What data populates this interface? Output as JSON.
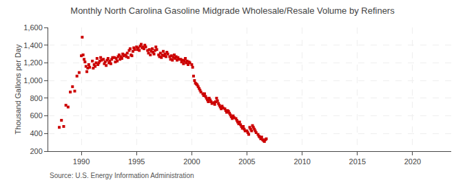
{
  "chart_data": {
    "type": "scatter",
    "title": "Monthly North Carolina Gasoline Midgrade Wholesale/Resale Volume by Refiners",
    "ylabel": "Thousand Gallons per Day",
    "annotations": [
      "Source: U.S. Energy Information Administration"
    ],
    "color": "#cc0000",
    "marker": "square",
    "grid": true,
    "xlim": [
      1987.0,
      2023.5
    ],
    "xticks": [
      1990,
      1995,
      2000,
      2005,
      2010,
      2015,
      2020
    ],
    "ylim": [
      200,
      1600
    ],
    "yticks": [
      200,
      400,
      600,
      800,
      {
        "value": 1000,
        "label": "1,000"
      },
      {
        "value": 1200,
        "label": "1,200"
      },
      {
        "value": 1400,
        "label": "1,400"
      },
      {
        "value": 1600,
        "label": "1,600"
      }
    ],
    "x": [
      1988.0,
      1988.2,
      1988.4,
      1988.6,
      1988.8,
      1989.0,
      1989.2,
      1989.4,
      1989.6,
      1989.8,
      1990.0,
      1990.08,
      1990.16,
      1990.25,
      1990.33,
      1990.42,
      1990.5,
      1990.58,
      1990.67,
      1990.75,
      1991.0,
      1991.08,
      1991.16,
      1991.25,
      1991.33,
      1991.42,
      1991.5,
      1991.58,
      1991.67,
      1991.75,
      1991.83,
      1992.0,
      1992.08,
      1992.16,
      1992.25,
      1992.33,
      1992.42,
      1992.5,
      1992.58,
      1992.67,
      1992.75,
      1992.83,
      1993.0,
      1993.08,
      1993.16,
      1993.25,
      1993.33,
      1993.42,
      1993.5,
      1993.58,
      1993.67,
      1993.75,
      1993.83,
      1994.0,
      1994.08,
      1994.16,
      1994.25,
      1994.33,
      1994.42,
      1994.5,
      1994.58,
      1994.67,
      1994.75,
      1994.83,
      1995.0,
      1995.08,
      1995.16,
      1995.25,
      1995.33,
      1995.42,
      1995.5,
      1995.58,
      1995.67,
      1995.75,
      1995.83,
      1996.0,
      1996.08,
      1996.16,
      1996.25,
      1996.33,
      1996.42,
      1996.5,
      1996.58,
      1996.67,
      1996.75,
      1996.83,
      1997.0,
      1997.08,
      1997.16,
      1997.25,
      1997.33,
      1997.42,
      1997.5,
      1997.58,
      1997.67,
      1997.75,
      1997.83,
      1998.0,
      1998.08,
      1998.16,
      1998.25,
      1998.33,
      1998.42,
      1998.5,
      1998.58,
      1998.67,
      1998.75,
      1998.83,
      1999.0,
      1999.08,
      1999.16,
      1999.25,
      1999.33,
      1999.42,
      1999.5,
      1999.58,
      1999.67,
      1999.75,
      1999.83,
      2000.0,
      2000.08,
      2000.16,
      2000.25,
      2000.33,
      2000.42,
      2000.5,
      2000.58,
      2000.67,
      2000.75,
      2000.83,
      2001.0,
      2001.08,
      2001.16,
      2001.25,
      2001.33,
      2001.42,
      2001.5,
      2001.58,
      2001.67,
      2001.75,
      2001.83,
      2002.0,
      2002.08,
      2002.16,
      2002.25,
      2002.33,
      2002.42,
      2002.5,
      2002.58,
      2002.67,
      2002.75,
      2002.83,
      2003.0,
      2003.08,
      2003.16,
      2003.25,
      2003.33,
      2003.42,
      2003.5,
      2003.58,
      2003.67,
      2003.75,
      2003.83,
      2004.0,
      2004.08,
      2004.16,
      2004.25,
      2004.33,
      2004.42,
      2004.5,
      2004.58,
      2004.67,
      2004.75,
      2004.83,
      2005.0,
      2005.08,
      2005.16,
      2005.25,
      2005.33,
      2005.42,
      2005.5,
      2005.58,
      2005.67,
      2005.75,
      2005.83,
      2006.0,
      2006.08,
      2006.16,
      2006.25,
      2006.33,
      2006.42,
      2006.5,
      2006.58,
      2006.67,
      2006.75
    ],
    "values": [
      470,
      550,
      480,
      720,
      700,
      870,
      930,
      880,
      1050,
      1090,
      1280,
      1490,
      1290,
      1240,
      1210,
      1160,
      1100,
      1140,
      1180,
      1150,
      1220,
      1140,
      1180,
      1160,
      1200,
      1250,
      1180,
      1200,
      1220,
      1260,
      1230,
      1240,
      1190,
      1210,
      1170,
      1230,
      1250,
      1200,
      1220,
      1190,
      1240,
      1260,
      1260,
      1210,
      1250,
      1220,
      1270,
      1290,
      1240,
      1270,
      1250,
      1300,
      1280,
      1290,
      1270,
      1310,
      1260,
      1340,
      1360,
      1290,
      1280,
      1330,
      1370,
      1350,
      1380,
      1350,
      1370,
      1340,
      1390,
      1410,
      1370,
      1380,
      1360,
      1400,
      1380,
      1340,
      1310,
      1350,
      1290,
      1330,
      1360,
      1320,
      1300,
      1340,
      1380,
      1350,
      1290,
      1270,
      1310,
      1260,
      1290,
      1330,
      1280,
      1300,
      1270,
      1320,
      1300,
      1270,
      1240,
      1280,
      1230,
      1260,
      1290,
      1250,
      1270,
      1230,
      1260,
      1240,
      1240,
      1210,
      1230,
      1190,
      1220,
      1250,
      1200,
      1220,
      1180,
      1210,
      1200,
      1180,
      1150,
      1050,
      1000,
      970,
      960,
      950,
      930,
      910,
      890,
      870,
      850,
      830,
      850,
      820,
      800,
      780,
      760,
      800,
      780,
      760,
      740,
      750,
      730,
      760,
      800,
      770,
      740,
      720,
      700,
      680,
      710,
      690,
      680,
      660,
      640,
      660,
      650,
      630,
      610,
      590,
      570,
      600,
      580,
      570,
      550,
      530,
      510,
      530,
      500,
      480,
      460,
      480,
      450,
      430,
      430,
      410,
      390,
      470,
      450,
      430,
      490,
      470,
      450,
      430,
      410,
      390,
      370,
      360,
      340,
      360,
      330,
      320,
      310,
      330,
      340
    ]
  }
}
